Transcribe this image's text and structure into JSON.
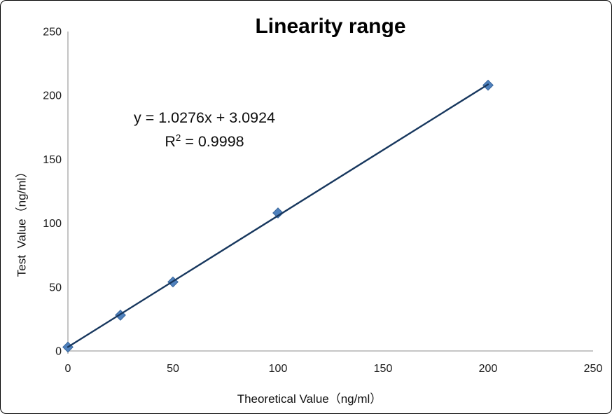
{
  "window": {
    "background": "#FFFFFF",
    "frame_border_color": "#000000"
  },
  "chart_data": {
    "type": "scatter",
    "title": "Linearity range",
    "xlabel": "Theoretical Value（ng/ml）",
    "ylabel": "Test  Value（ng/ml）",
    "x": [
      0,
      25,
      50,
      100,
      200
    ],
    "y": [
      3,
      28,
      54,
      108,
      208
    ],
    "xlim": [
      0,
      250
    ],
    "ylim": [
      0,
      250
    ],
    "x_ticks": [
      0,
      50,
      100,
      150,
      200,
      250
    ],
    "y_ticks": [
      0,
      50,
      100,
      150,
      200,
      250
    ],
    "grid": false,
    "legend": "none",
    "trendline": {
      "slope": 1.0276,
      "intercept": 3.0924,
      "x_start": 0,
      "x_end": 200,
      "equation_text": "y = 1.0276x + 3.0924",
      "r2_prefix": "R",
      "r2_sup": "2",
      "r2_suffix": " = 0.9998"
    },
    "marker": {
      "shape": "diamond",
      "size": 7.2,
      "fill": "#4F81BD",
      "stroke": "#3A679C"
    },
    "colors": {
      "trendline": "#17375E",
      "axis_line": "#BEBEBE",
      "tick_text": "#1A1A1A"
    }
  }
}
